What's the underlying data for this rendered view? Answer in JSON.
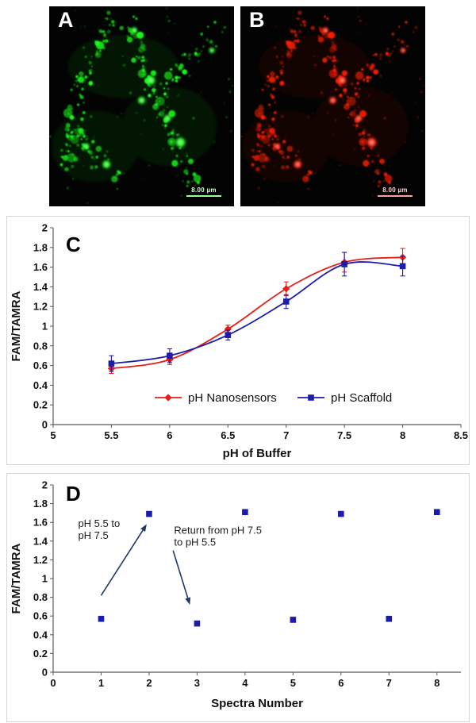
{
  "panels": {
    "a": {
      "label": "A",
      "scale_text": "8.00 µm"
    },
    "b": {
      "label": "B",
      "scale_text": "8.00 µm"
    }
  },
  "colors": {
    "green_channel": "#1aff1a",
    "green_core": "#ccffcc",
    "red_channel": "#ff1e00",
    "red_core": "#ffd2c4",
    "nanosensor_red": "#e32119",
    "scaffold_blue": "#1c1ca8",
    "annotation_arrow": "#1f3864"
  },
  "chart_data": [
    {
      "id": "panelC",
      "panel_label": "C",
      "type": "line",
      "xlabel": "pH of Buffer",
      "ylabel": "FAM/TAMRA",
      "xlim": [
        5,
        8.5
      ],
      "ylim": [
        0,
        2
      ],
      "xticks": [
        5,
        5.5,
        6,
        6.5,
        7,
        7.5,
        8,
        8.5
      ],
      "yticks": [
        0,
        0.2,
        0.4,
        0.6,
        0.8,
        1,
        1.2,
        1.4,
        1.6,
        1.8,
        2
      ],
      "x": [
        5.5,
        6,
        6.5,
        7,
        7.5,
        8
      ],
      "series": [
        {
          "name": "pH Nanosensors",
          "marker": "diamond",
          "color": "#e32119",
          "values": [
            0.57,
            0.66,
            0.97,
            1.38,
            1.65,
            1.7
          ],
          "errors": [
            0.05,
            0.05,
            0.04,
            0.07,
            0.1,
            0.09
          ]
        },
        {
          "name": "pH Scaffold",
          "marker": "square",
          "color": "#1c1ca8",
          "values": [
            0.62,
            0.7,
            0.91,
            1.25,
            1.63,
            1.61
          ],
          "errors": [
            0.08,
            0.07,
            0.05,
            0.07,
            0.12,
            0.1
          ]
        }
      ],
      "legend": {
        "position": "inside-bottom",
        "entries": [
          "pH Nanosensors",
          "pH Scaffold"
        ]
      }
    },
    {
      "id": "panelD",
      "panel_label": "D",
      "type": "scatter",
      "xlabel": "Spectra Number",
      "ylabel": "FAM/TAMRA",
      "xlim": [
        0,
        8.5
      ],
      "ylim": [
        0,
        2
      ],
      "xticks": [
        0,
        1,
        2,
        3,
        4,
        5,
        6,
        7,
        8
      ],
      "yticks": [
        0,
        0.2,
        0.4,
        0.6,
        0.8,
        1,
        1.2,
        1.4,
        1.6,
        1.8,
        2
      ],
      "x": [
        1,
        2,
        3,
        4,
        5,
        6,
        7,
        8
      ],
      "series": [
        {
          "name": "FAM/TAMRA ratio",
          "marker": "square",
          "color": "#1c1ca8",
          "values": [
            0.57,
            1.69,
            0.52,
            1.71,
            0.56,
            1.69,
            0.57,
            1.71
          ]
        }
      ],
      "annotations": [
        {
          "lines": [
            "pH 5.5 to",
            "pH 7.5"
          ],
          "text_xy": [
            0.52,
            1.55
          ],
          "arrow_from": [
            1.0,
            0.82
          ],
          "arrow_to": [
            1.95,
            1.58
          ]
        },
        {
          "lines": [
            "Return from pH 7.5",
            "to pH 5.5"
          ],
          "text_xy": [
            2.52,
            1.48
          ],
          "arrow_from": [
            2.5,
            1.3
          ],
          "arrow_to": [
            2.85,
            0.72
          ]
        }
      ]
    }
  ]
}
